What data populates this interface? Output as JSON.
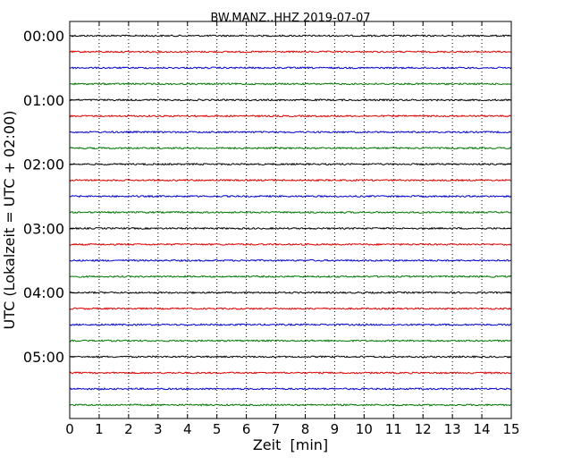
{
  "chart_data": {
    "type": "line",
    "title": "BW.MANZ..HHZ 2019-07-07",
    "xlabel": "Zeit  [min]",
    "ylabel": "UTC (Lokalzeit = UTC + 02:00)",
    "xlim": [
      0,
      15
    ],
    "x_ticks": [
      "0",
      "1",
      "2",
      "3",
      "4",
      "5",
      "6",
      "7",
      "8",
      "9",
      "10",
      "11",
      "12",
      "13",
      "14",
      "15"
    ],
    "y_ticks": [
      "00:00",
      "01:00",
      "02:00",
      "03:00",
      "04:00",
      "05:00"
    ],
    "trace_offsets_hours": [
      0,
      0.25,
      0.5,
      0.75,
      1,
      1.25,
      1.5,
      1.75,
      2,
      2.25,
      2.5,
      2.75,
      3,
      3.25,
      3.5,
      3.75,
      4,
      4.25,
      4.5,
      4.75,
      5,
      5.25,
      5.5,
      5.75
    ],
    "trace_colors": [
      "#000000",
      "#dd0000",
      "#0000cc",
      "#007700"
    ],
    "grid": "vertical dotted lines at each minute"
  }
}
